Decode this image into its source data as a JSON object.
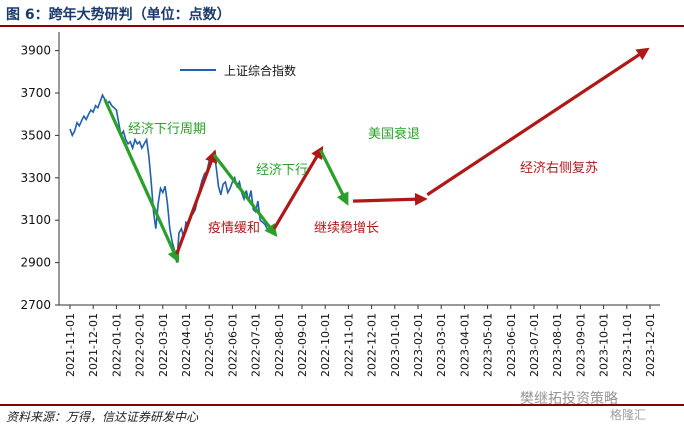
{
  "header": {
    "title": "图 6：跨年大势研判（单位：点数）"
  },
  "footer": {
    "source": "资料来源：万得，信达证券研发中心"
  },
  "watermark": {
    "text": "樊继拓投资策略",
    "text2": "格隆汇"
  },
  "chart_data": {
    "type": "line",
    "title": "图 6：跨年大势研判（单位：点数）",
    "ylim": [
      2700,
      3950
    ],
    "yticks": [
      2700,
      2900,
      3100,
      3300,
      3500,
      3700,
      3900
    ],
    "x_labels": [
      "2021-11-01",
      "2021-12-01",
      "2022-01-01",
      "2022-02-01",
      "2022-03-01",
      "2022-04-01",
      "2022-05-01",
      "2022-06-01",
      "2022-07-01",
      "2022-08-01",
      "2022-09-01",
      "2022-10-01",
      "2022-11-01",
      "2022-12-01",
      "2023-01-01",
      "2023-02-01",
      "2023-03-01",
      "2023-04-01",
      "2023-05-01",
      "2023-06-01",
      "2023-07-01",
      "2023-08-01",
      "2023-09-01",
      "2023-10-01",
      "2023-11-01",
      "2023-12-01"
    ],
    "legend": {
      "label": "上证综合指数",
      "position": "top-left"
    },
    "colors": {
      "index": "#1f5fb4",
      "down": "#2aa02a",
      "up": "#b01818",
      "axis": "#333333"
    },
    "series": [
      {
        "name": "上证综合指数",
        "points": [
          [
            0.0,
            3530
          ],
          [
            0.1,
            3500
          ],
          [
            0.2,
            3520
          ],
          [
            0.3,
            3560
          ],
          [
            0.4,
            3545
          ],
          [
            0.5,
            3570
          ],
          [
            0.6,
            3590
          ],
          [
            0.7,
            3575
          ],
          [
            0.8,
            3600
          ],
          [
            0.9,
            3620
          ],
          [
            1.0,
            3610
          ],
          [
            1.1,
            3640
          ],
          [
            1.2,
            3630
          ],
          [
            1.3,
            3660
          ],
          [
            1.4,
            3690
          ],
          [
            1.5,
            3670
          ],
          [
            1.6,
            3650
          ],
          [
            1.7,
            3660
          ],
          [
            1.8,
            3640
          ],
          [
            1.9,
            3630
          ],
          [
            2.0,
            3620
          ],
          [
            2.1,
            3560
          ],
          [
            2.2,
            3500
          ],
          [
            2.3,
            3520
          ],
          [
            2.4,
            3480
          ],
          [
            2.5,
            3460
          ],
          [
            2.6,
            3470
          ],
          [
            2.7,
            3440
          ],
          [
            2.8,
            3480
          ],
          [
            2.9,
            3460
          ],
          [
            3.0,
            3470
          ],
          [
            3.1,
            3440
          ],
          [
            3.2,
            3460
          ],
          [
            3.3,
            3480
          ],
          [
            3.4,
            3400
          ],
          [
            3.5,
            3280
          ],
          [
            3.6,
            3140
          ],
          [
            3.7,
            3060
          ],
          [
            3.8,
            3180
          ],
          [
            3.9,
            3250
          ],
          [
            4.0,
            3230
          ],
          [
            4.1,
            3260
          ],
          [
            4.2,
            3180
          ],
          [
            4.3,
            3060
          ],
          [
            4.4,
            3000
          ],
          [
            4.5,
            2960
          ],
          [
            4.6,
            2900
          ],
          [
            4.7,
            3040
          ],
          [
            4.8,
            3060
          ],
          [
            4.9,
            3020
          ],
          [
            5.0,
            3090
          ],
          [
            5.1,
            3080
          ],
          [
            5.2,
            3120
          ],
          [
            5.3,
            3130
          ],
          [
            5.4,
            3150
          ],
          [
            5.5,
            3200
          ],
          [
            5.6,
            3250
          ],
          [
            5.7,
            3290
          ],
          [
            5.8,
            3320
          ],
          [
            5.9,
            3330
          ],
          [
            6.0,
            3380
          ],
          [
            6.1,
            3400
          ],
          [
            6.2,
            3420
          ],
          [
            6.3,
            3350
          ],
          [
            6.4,
            3260
          ],
          [
            6.5,
            3220
          ],
          [
            6.6,
            3270
          ],
          [
            6.7,
            3280
          ],
          [
            6.8,
            3230
          ],
          [
            6.9,
            3250
          ],
          [
            7.0,
            3280
          ],
          [
            7.1,
            3300
          ],
          [
            7.2,
            3260
          ],
          [
            7.3,
            3280
          ],
          [
            7.4,
            3230
          ],
          [
            7.5,
            3200
          ],
          [
            7.6,
            3240
          ],
          [
            7.7,
            3190
          ],
          [
            7.8,
            3240
          ],
          [
            7.9,
            3150
          ],
          [
            8.0,
            3140
          ],
          [
            8.1,
            3190
          ],
          [
            8.2,
            3100
          ],
          [
            8.3,
            3090
          ],
          [
            8.4,
            3080
          ],
          [
            8.5,
            3060
          ],
          [
            8.6,
            3040
          ]
        ]
      }
    ],
    "trend_arrows": [
      {
        "trend": "down",
        "from": [
          1.5,
          3670
        ],
        "to": [
          4.6,
          2920
        ],
        "label": "经济下行周期"
      },
      {
        "trend": "up",
        "from": [
          4.6,
          2940
        ],
        "to": [
          6.2,
          3410
        ],
        "label": "疫情缓和"
      },
      {
        "trend": "down",
        "from": [
          6.2,
          3410
        ],
        "to": [
          8.8,
          3040
        ],
        "label": "经济下行"
      },
      {
        "trend": "up",
        "from": [
          8.8,
          3060
        ],
        "to": [
          10.8,
          3430
        ],
        "label": "继续稳增长"
      },
      {
        "trend": "down",
        "from": [
          10.8,
          3430
        ],
        "to": [
          11.9,
          3190
        ],
        "label": "美国衰退"
      },
      {
        "trend": "up",
        "from": [
          12.2,
          3190
        ],
        "to": [
          15.2,
          3200
        ],
        "label": ""
      },
      {
        "trend": "up",
        "from": [
          15.4,
          3220
        ],
        "to": [
          24.8,
          3900
        ],
        "label": "经济右侧复苏"
      }
    ]
  }
}
